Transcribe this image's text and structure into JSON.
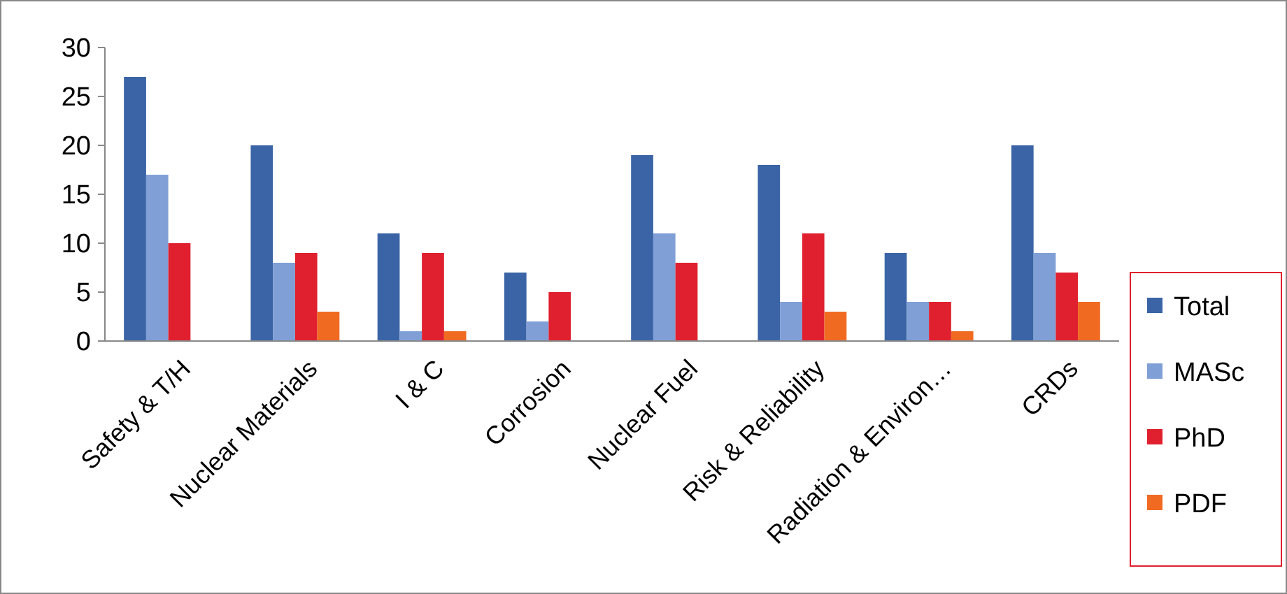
{
  "chart_data": {
    "type": "bar",
    "categories": [
      "Safety & T/H",
      "Nuclear Materials",
      "I & C",
      "Corrosion",
      "Nuclear Fuel",
      "Risk & Reliability",
      "Radiation & Environ…",
      "CRDs"
    ],
    "series": [
      {
        "name": "Total",
        "color": "#3a64a6",
        "values": [
          27,
          20,
          11,
          7,
          19,
          18,
          9,
          20
        ]
      },
      {
        "name": "MASc",
        "color": "#7f9fd6",
        "values": [
          17,
          8,
          1,
          2,
          11,
          4,
          4,
          9
        ]
      },
      {
        "name": "PhD",
        "color": "#e0202e",
        "values": [
          10,
          9,
          9,
          5,
          8,
          11,
          4,
          7
        ]
      },
      {
        "name": "PDF",
        "color": "#f06a22",
        "values": [
          0,
          3,
          1,
          0,
          0,
          3,
          1,
          4
        ]
      }
    ],
    "ylim": [
      0,
      30
    ],
    "yticks": [
      0,
      5,
      10,
      15,
      20,
      25,
      30
    ],
    "grid": false,
    "legend": "right"
  }
}
